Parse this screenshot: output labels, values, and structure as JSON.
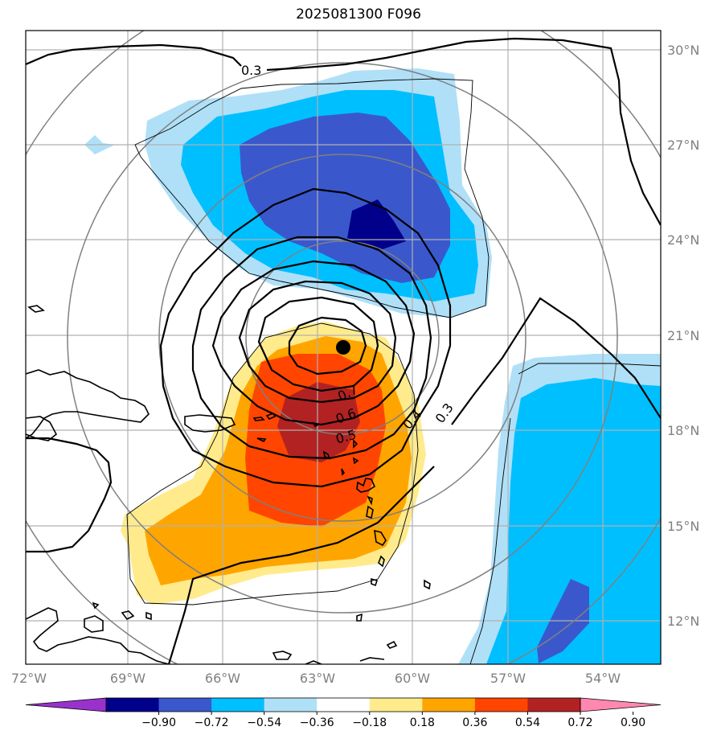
{
  "title": "2025081300 F096",
  "lon_ticks": [
    "72°W",
    "69°W",
    "66°W",
    "63°W",
    "60°W",
    "57°W",
    "54°W"
  ],
  "lat_ticks": [
    "30°N",
    "27°N",
    "24°N",
    "21°N",
    "18°N",
    "15°N",
    "12°N"
  ],
  "contour_labels": [
    "0.3",
    "0.7",
    "0.6",
    "0.5",
    "0.4",
    "0.3"
  ],
  "colorbar": {
    "labels": [
      "−0.90",
      "−0.72",
      "−0.54",
      "−0.36",
      "−0.18",
      "0.18",
      "0.36",
      "0.54",
      "0.72",
      "0.90"
    ],
    "colors": [
      "#9932cc",
      "#00008b",
      "#3a58cc",
      "#00bfff",
      "#b0e0f8",
      "#ffffff",
      "#ffeb8c",
      "#ffa500",
      "#ff4500",
      "#b22222",
      "#ff88b0"
    ]
  },
  "center_marker": {
    "lon": -62.2,
    "lat": 20.6
  },
  "colors": {
    "dark_blue": "#00008b",
    "royal_blue": "#3a58cc",
    "deep_sky": "#00bfff",
    "light_blue": "#b0e0f8",
    "light_yellow": "#ffeb8c",
    "orange": "#ffa500",
    "red_orange": "#ff4500",
    "firebrick": "#b22222"
  }
}
